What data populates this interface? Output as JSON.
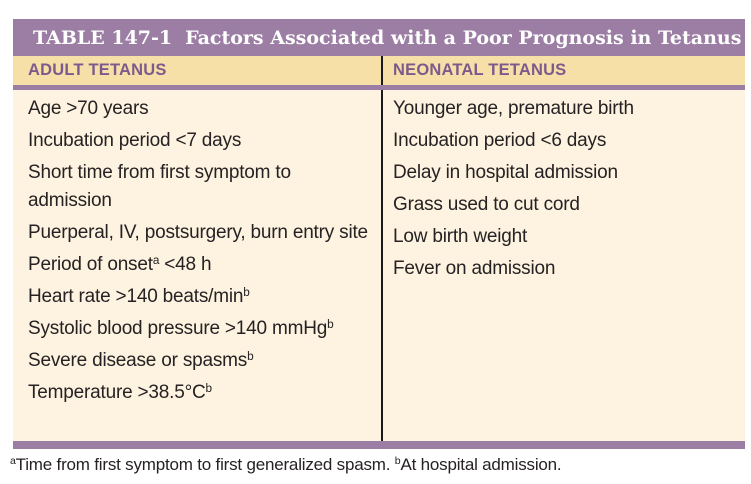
{
  "colors": {
    "accent_purple": "#9c7ea4",
    "header_row_tan": "#f7dfa8",
    "header_text_purple": "#7d5a8c",
    "body_cream": "#fdf3e0",
    "body_text": "#262223",
    "column_divider": "#1a1a1a",
    "title_text": "#ffffff"
  },
  "table": {
    "label": "TABLE 147-1",
    "title": "Factors Associated with a Poor Prognosis in Tetanus",
    "columns": [
      {
        "header": "ADULT TETANUS",
        "rows": [
          {
            "text": "Age >70 years"
          },
          {
            "text": "Incubation period <7 days"
          },
          {
            "text": "Short time from first symptom to admission"
          },
          {
            "text": "Puerperal, IV, postsurgery, burn entry site"
          },
          {
            "pre": "Period of onset",
            "sup": "a",
            "post": " <48 h"
          },
          {
            "pre": "Heart rate >140 beats/min",
            "sup": "b"
          },
          {
            "pre": "Systolic blood pressure >140 mmHg",
            "sup": "b"
          },
          {
            "pre": "Severe disease or spasms",
            "sup": "b"
          },
          {
            "pre": "Temperature >38.5°C",
            "sup": "b"
          }
        ]
      },
      {
        "header": "NEONATAL TETANUS",
        "rows": [
          {
            "text": "Younger age, premature birth"
          },
          {
            "text": "Incubation period <6 days"
          },
          {
            "text": "Delay in hospital admission"
          },
          {
            "text": "Grass used to cut cord"
          },
          {
            "text": "Low birth weight"
          },
          {
            "text": "Fever on admission"
          }
        ]
      }
    ],
    "footnote": {
      "sup_a": "a",
      "note_a": "Time from first symptom to first generalized spasm. ",
      "sup_b": "b",
      "note_b": "At hospital admission."
    }
  }
}
